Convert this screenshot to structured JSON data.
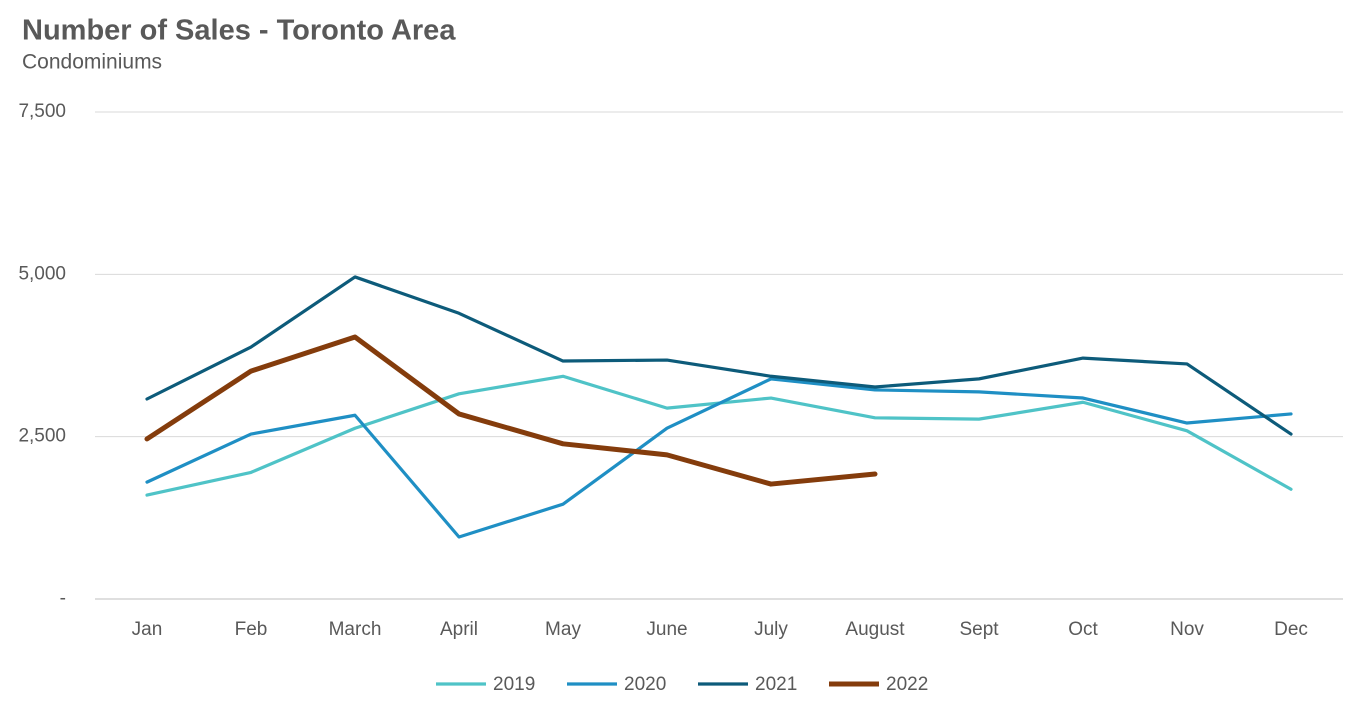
{
  "chart_data": {
    "type": "line",
    "title": "Number of Sales - Toronto Area",
    "subtitle": "Condominiums",
    "categories": [
      "Jan",
      "Feb",
      "March",
      "April",
      "May",
      "June",
      "July",
      "August",
      "Sept",
      "Oct",
      "Nov",
      "Dec"
    ],
    "series": [
      {
        "name": "2019",
        "color": "#4fc3c7",
        "values": [
          1600,
          1950,
          2630,
          3160,
          3430,
          2940,
          3095,
          2790,
          2770,
          3030,
          2590,
          1690
        ]
      },
      {
        "name": "2020",
        "color": "#1f8fc4",
        "values": [
          1800,
          2540,
          2830,
          955,
          1460,
          2630,
          3390,
          3220,
          3190,
          3095,
          2710,
          2850
        ]
      },
      {
        "name": "2021",
        "color": "#0d5b7a",
        "values": [
          3080,
          3880,
          4960,
          4400,
          3665,
          3680,
          3430,
          3265,
          3390,
          3710,
          3620,
          2540
        ]
      },
      {
        "name": "2022",
        "color": "#843c0c",
        "values": [
          2465,
          3510,
          4035,
          2850,
          2390,
          2220,
          1770,
          1925,
          null,
          null,
          null,
          null
        ]
      }
    ],
    "ylim": [
      0,
      7500
    ],
    "yticks": [
      {
        "value": 0,
        "label": "-"
      },
      {
        "value": 2500,
        "label": "2,500"
      },
      {
        "value": 5000,
        "label": "5,000"
      },
      {
        "value": 7500,
        "label": "7,500"
      }
    ],
    "grid": true,
    "legend": "bottom"
  }
}
